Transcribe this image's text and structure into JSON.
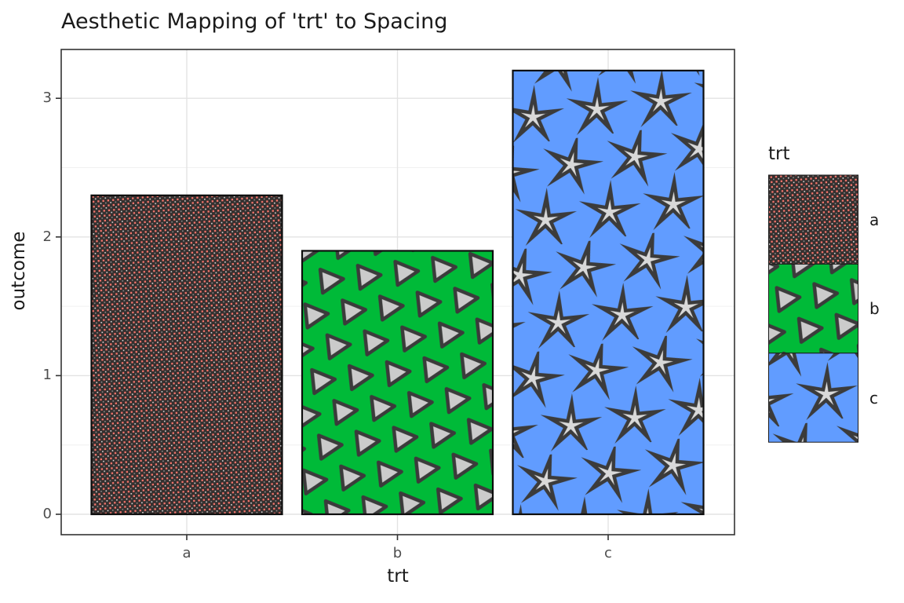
{
  "title": "Aesthetic Mapping of 'trt' to Spacing",
  "chart_data": {
    "type": "bar",
    "categories": [
      "a",
      "b",
      "c"
    ],
    "values": [
      2.3,
      1.9,
      3.2
    ],
    "title": "Aesthetic Mapping of 'trt' to Spacing",
    "xlabel": "trt",
    "ylabel": "outcome",
    "ylim": [
      -0.16,
      3.35
    ],
    "yticks": [
      0,
      1,
      2,
      3
    ],
    "grid": "major and minor horizontal, major vertical at categories",
    "legend_position": "right",
    "legend": {
      "title": "trt",
      "entries": [
        {
          "label": "a",
          "fill": "#F8766D",
          "pattern": "dense-dots",
          "pattern_spacing": "small"
        },
        {
          "label": "b",
          "fill": "#00BA38",
          "pattern": "triangles",
          "pattern_spacing": "medium"
        },
        {
          "label": "c",
          "fill": "#619CFF",
          "pattern": "stars",
          "pattern_spacing": "large"
        }
      ]
    },
    "colors": {
      "bar_outline": "#0d0d0d",
      "panel_border": "#333333",
      "grid_major": "#e3e3e3",
      "grid_minor": "#f0f0f0",
      "tick_text": "#4d4d4d",
      "shape_fill": "#d0d0d0",
      "shape_outline": "#3b3b3b",
      "dot_dark_bg": "#35302f"
    }
  }
}
